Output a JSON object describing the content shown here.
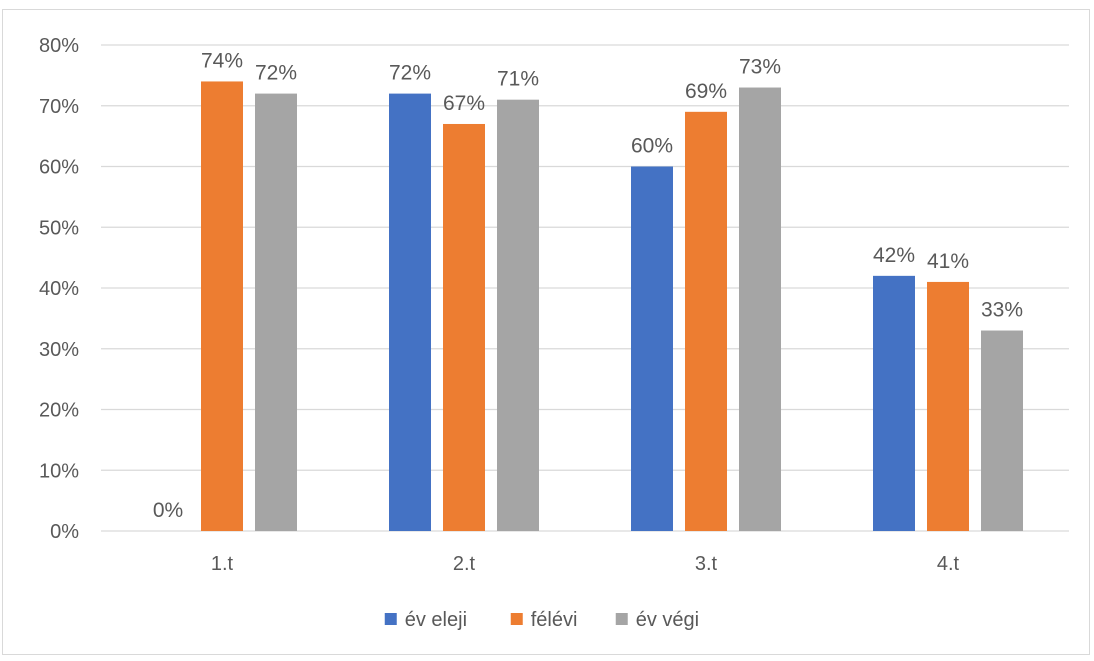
{
  "chart_data": {
    "type": "bar",
    "categories": [
      "1.t",
      "2.t",
      "3.t",
      "4.t"
    ],
    "series": [
      {
        "name": "év eleji",
        "color": "#4472C4",
        "values": [
          0,
          72,
          60,
          42
        ],
        "labels": [
          "0%",
          "72%",
          "60%",
          "42%"
        ]
      },
      {
        "name": "félévi",
        "color": "#ED7D31",
        "values": [
          74,
          67,
          69,
          41
        ],
        "labels": [
          "74%",
          "67%",
          "69%",
          "41%"
        ]
      },
      {
        "name": "év végi",
        "color": "#A5A5A5",
        "values": [
          72,
          71,
          73,
          33
        ],
        "labels": [
          "72%",
          "71%",
          "73%",
          "33%"
        ]
      }
    ],
    "y_ticks": [
      "0%",
      "10%",
      "20%",
      "30%",
      "40%",
      "50%",
      "60%",
      "70%",
      "80%"
    ],
    "ylim": [
      0,
      80
    ],
    "grid": true,
    "legend_position": "bottom",
    "gridline_color": "#d9d9d9",
    "text_color": "#595959"
  }
}
